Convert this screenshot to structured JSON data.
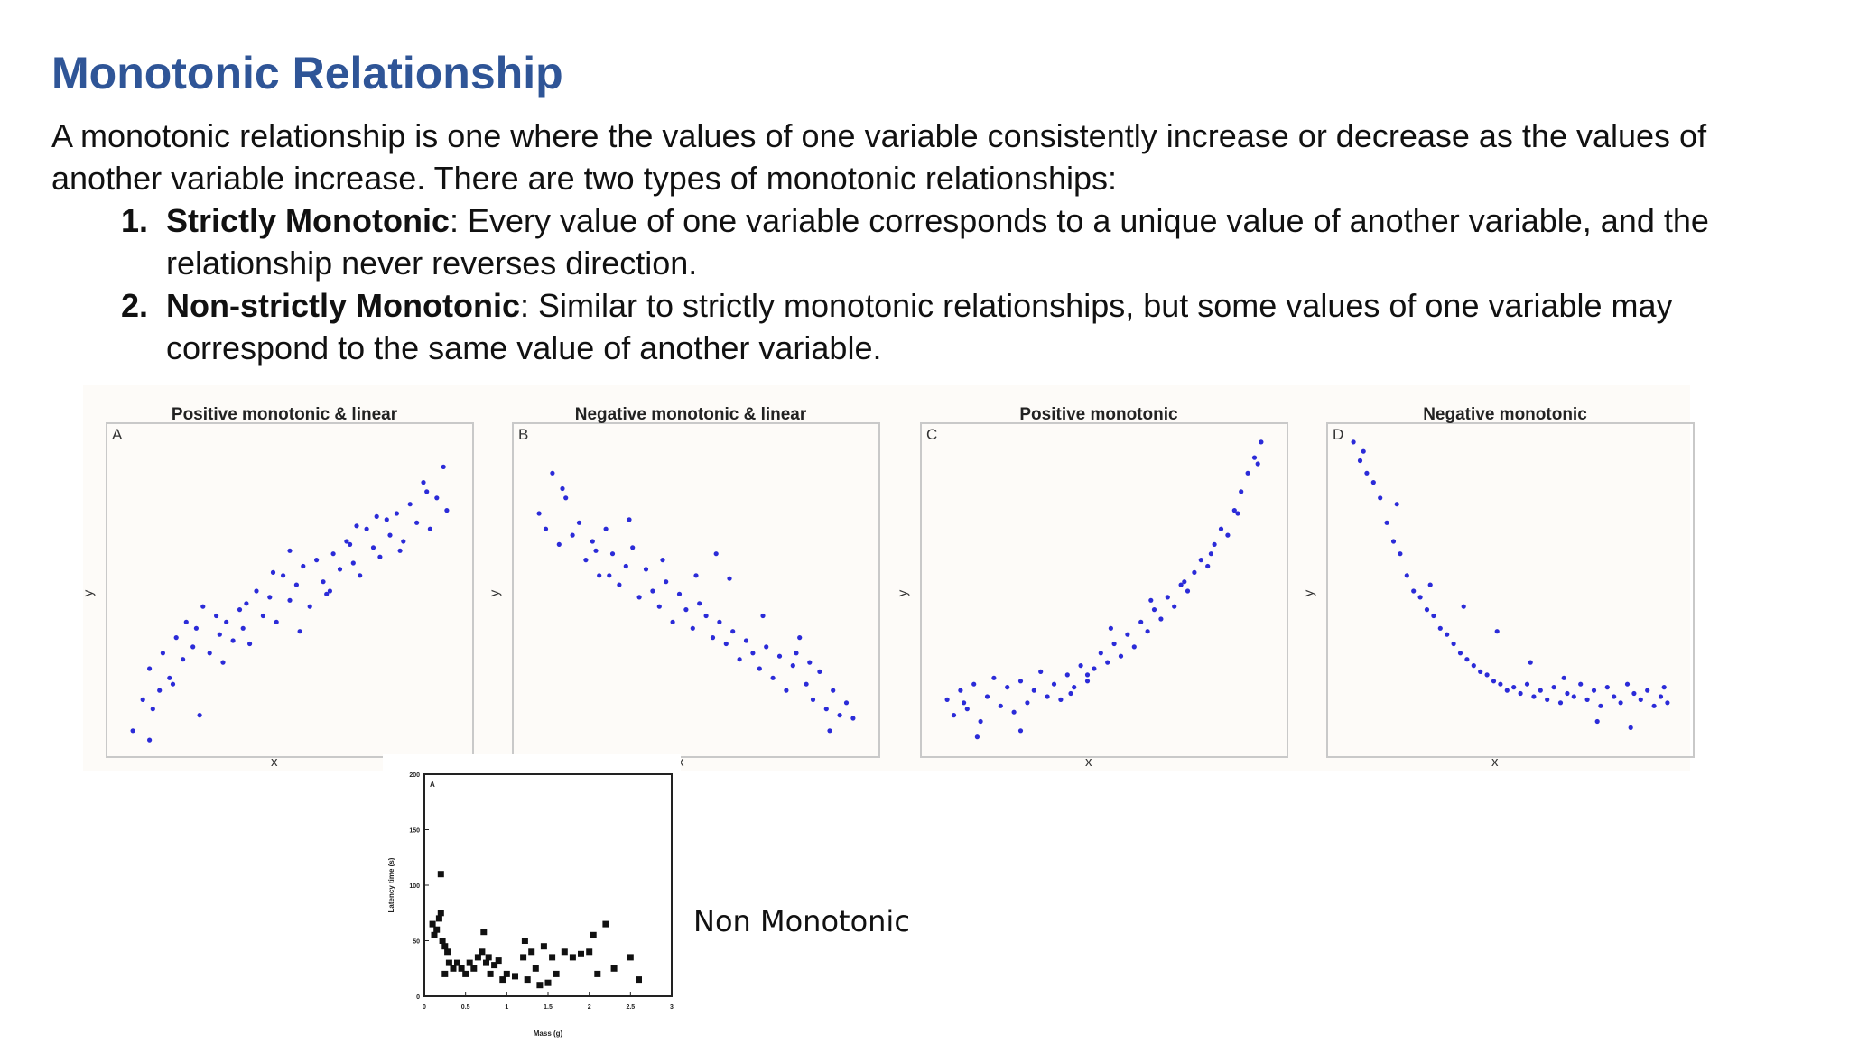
{
  "title": "Monotonic Relationship",
  "intro": "A monotonic relationship is one where the values of one variable consistently increase or decrease as the values of another variable increase. There are two types of monotonic relationships:",
  "types": [
    {
      "number": "1.",
      "term": "Strictly Monotonic",
      "text": ": Every value of one variable corresponds to a unique value of another variable, and the relationship never reverses direction."
    },
    {
      "number": "2.",
      "term": "Non-strictly Monotonic",
      "text": ": Similar to strictly monotonic relationships, but some values of one variable may correspond to the same value of another variable."
    }
  ],
  "panels": [
    {
      "letter": "A",
      "title": "Positive monotonic & linear",
      "xlabel": "x",
      "ylabel": "y"
    },
    {
      "letter": "B",
      "title": "Negative monotonic & linear",
      "xlabel": "x",
      "ylabel": "y"
    },
    {
      "letter": "C",
      "title": "Positive monotonic",
      "xlabel": "x",
      "ylabel": "y"
    },
    {
      "letter": "D",
      "title": "Negative monotonic",
      "xlabel": "x",
      "ylabel": "y"
    }
  ],
  "nonmono_caption": "Non Monotonic",
  "colors": {
    "title": "#2f5597",
    "point_blue": "#2b2bd8",
    "point_black": "#111111"
  },
  "chart_data": [
    {
      "type": "scatter",
      "title": "Positive monotonic & linear",
      "letter": "A",
      "xlabel": "x",
      "ylabel": "y",
      "xlim": [
        0,
        1
      ],
      "ylim": [
        0,
        1
      ],
      "grid": false,
      "x": [
        0.03,
        0.06,
        0.08,
        0.09,
        0.11,
        0.12,
        0.14,
        0.16,
        0.18,
        0.19,
        0.21,
        0.22,
        0.24,
        0.26,
        0.28,
        0.29,
        0.31,
        0.33,
        0.35,
        0.36,
        0.38,
        0.4,
        0.42,
        0.44,
        0.46,
        0.48,
        0.5,
        0.52,
        0.54,
        0.56,
        0.58,
        0.6,
        0.62,
        0.63,
        0.65,
        0.67,
        0.69,
        0.71,
        0.73,
        0.75,
        0.77,
        0.79,
        0.8,
        0.82,
        0.84,
        0.86,
        0.88,
        0.9,
        0.92,
        0.94,
        0.96,
        0.08,
        0.15,
        0.23,
        0.3,
        0.37,
        0.45,
        0.53,
        0.61,
        0.68,
        0.76,
        0.83,
        0.91,
        0.97,
        0.5,
        0.7
      ],
      "y": [
        0.05,
        0.15,
        0.25,
        0.12,
        0.18,
        0.3,
        0.22,
        0.35,
        0.28,
        0.4,
        0.32,
        0.38,
        0.45,
        0.3,
        0.42,
        0.36,
        0.4,
        0.34,
        0.44,
        0.38,
        0.33,
        0.5,
        0.42,
        0.48,
        0.4,
        0.55,
        0.47,
        0.52,
        0.58,
        0.45,
        0.6,
        0.53,
        0.5,
        0.62,
        0.57,
        0.66,
        0.59,
        0.55,
        0.7,
        0.64,
        0.61,
        0.73,
        0.68,
        0.75,
        0.66,
        0.78,
        0.72,
        0.85,
        0.7,
        0.8,
        0.9,
        0.02,
        0.2,
        0.1,
        0.27,
        0.46,
        0.56,
        0.37,
        0.49,
        0.65,
        0.74,
        0.63,
        0.82,
        0.76,
        0.63,
        0.71
      ]
    },
    {
      "type": "scatter",
      "title": "Negative monotonic & linear",
      "letter": "B",
      "xlabel": "x",
      "ylabel": "y",
      "xlim": [
        0,
        1
      ],
      "ylim": [
        0,
        1
      ],
      "grid": false,
      "x": [
        0.03,
        0.05,
        0.07,
        0.09,
        0.11,
        0.13,
        0.15,
        0.17,
        0.19,
        0.21,
        0.23,
        0.25,
        0.27,
        0.29,
        0.31,
        0.33,
        0.35,
        0.37,
        0.39,
        0.41,
        0.43,
        0.45,
        0.47,
        0.49,
        0.51,
        0.53,
        0.55,
        0.57,
        0.59,
        0.61,
        0.63,
        0.65,
        0.67,
        0.69,
        0.71,
        0.73,
        0.75,
        0.77,
        0.79,
        0.81,
        0.83,
        0.85,
        0.87,
        0.89,
        0.91,
        0.93,
        0.95,
        0.97,
        0.1,
        0.2,
        0.3,
        0.4,
        0.5,
        0.6,
        0.7,
        0.8,
        0.9,
        0.24,
        0.56,
        0.84
      ],
      "y": [
        0.75,
        0.7,
        0.88,
        0.65,
        0.8,
        0.68,
        0.72,
        0.6,
        0.66,
        0.55,
        0.7,
        0.62,
        0.52,
        0.58,
        0.64,
        0.48,
        0.57,
        0.5,
        0.45,
        0.53,
        0.4,
        0.49,
        0.44,
        0.38,
        0.46,
        0.42,
        0.35,
        0.4,
        0.33,
        0.37,
        0.28,
        0.34,
        0.3,
        0.25,
        0.32,
        0.22,
        0.29,
        0.18,
        0.26,
        0.35,
        0.2,
        0.15,
        0.24,
        0.12,
        0.18,
        0.1,
        0.14,
        0.09,
        0.83,
        0.63,
        0.73,
        0.6,
        0.55,
        0.54,
        0.42,
        0.3,
        0.05,
        0.55,
        0.62,
        0.27
      ]
    },
    {
      "type": "scatter",
      "title": "Positive monotonic",
      "letter": "C",
      "xlabel": "x",
      "ylabel": "y",
      "xlim": [
        0,
        1
      ],
      "ylim": [
        0,
        1
      ],
      "grid": false,
      "x": [
        0.03,
        0.05,
        0.07,
        0.09,
        0.11,
        0.13,
        0.15,
        0.17,
        0.19,
        0.21,
        0.23,
        0.25,
        0.27,
        0.29,
        0.31,
        0.33,
        0.35,
        0.37,
        0.39,
        0.41,
        0.43,
        0.45,
        0.47,
        0.49,
        0.51,
        0.53,
        0.55,
        0.57,
        0.59,
        0.61,
        0.63,
        0.65,
        0.67,
        0.69,
        0.71,
        0.73,
        0.75,
        0.77,
        0.79,
        0.81,
        0.83,
        0.85,
        0.87,
        0.89,
        0.91,
        0.93,
        0.95,
        0.97,
        0.12,
        0.25,
        0.4,
        0.52,
        0.64,
        0.74,
        0.82,
        0.9,
        0.96,
        0.08,
        0.45
      ],
      "y": [
        0.15,
        0.1,
        0.18,
        0.12,
        0.2,
        0.08,
        0.16,
        0.22,
        0.13,
        0.19,
        0.11,
        0.21,
        0.14,
        0.18,
        0.24,
        0.16,
        0.2,
        0.15,
        0.23,
        0.19,
        0.26,
        0.21,
        0.25,
        0.3,
        0.27,
        0.33,
        0.29,
        0.36,
        0.32,
        0.4,
        0.37,
        0.44,
        0.41,
        0.48,
        0.45,
        0.52,
        0.5,
        0.56,
        0.6,
        0.58,
        0.65,
        0.7,
        0.68,
        0.76,
        0.82,
        0.88,
        0.93,
        0.98,
        0.03,
        0.05,
        0.17,
        0.38,
        0.47,
        0.53,
        0.62,
        0.75,
        0.91,
        0.14,
        0.23
      ]
    },
    {
      "type": "scatter",
      "title": "Negative monotonic",
      "letter": "D",
      "xlabel": "x",
      "ylabel": "y",
      "xlim": [
        0,
        1
      ],
      "ylim": [
        0,
        1
      ],
      "grid": false,
      "x": [
        0.03,
        0.05,
        0.07,
        0.09,
        0.11,
        0.13,
        0.15,
        0.17,
        0.19,
        0.21,
        0.23,
        0.25,
        0.27,
        0.29,
        0.31,
        0.33,
        0.35,
        0.37,
        0.39,
        0.41,
        0.43,
        0.45,
        0.47,
        0.49,
        0.51,
        0.53,
        0.55,
        0.57,
        0.59,
        0.61,
        0.63,
        0.65,
        0.67,
        0.69,
        0.71,
        0.73,
        0.75,
        0.77,
        0.79,
        0.81,
        0.83,
        0.85,
        0.87,
        0.89,
        0.91,
        0.93,
        0.95,
        0.97,
        0.06,
        0.16,
        0.26,
        0.36,
        0.46,
        0.56,
        0.66,
        0.76,
        0.86,
        0.96
      ],
      "y": [
        0.98,
        0.92,
        0.88,
        0.85,
        0.8,
        0.72,
        0.66,
        0.62,
        0.55,
        0.5,
        0.48,
        0.44,
        0.42,
        0.38,
        0.36,
        0.33,
        0.3,
        0.28,
        0.26,
        0.24,
        0.23,
        0.21,
        0.2,
        0.18,
        0.19,
        0.17,
        0.2,
        0.16,
        0.18,
        0.15,
        0.19,
        0.14,
        0.17,
        0.16,
        0.2,
        0.15,
        0.18,
        0.13,
        0.19,
        0.16,
        0.14,
        0.2,
        0.17,
        0.15,
        0.18,
        0.13,
        0.16,
        0.14,
        0.95,
        0.78,
        0.52,
        0.45,
        0.37,
        0.27,
        0.22,
        0.08,
        0.06,
        0.19
      ]
    },
    {
      "type": "scatter",
      "letter": "A",
      "xlabel": "Mass (g)",
      "ylabel": "Latency time (s)",
      "xlim": [
        0,
        3
      ],
      "ylim": [
        0,
        200
      ],
      "grid": false,
      "xticks": [
        "0",
        "0.5",
        "1",
        "1.5",
        "2",
        "2.5",
        "3"
      ],
      "yticks": [
        "0",
        "50",
        "100",
        "150",
        "200"
      ],
      "x": [
        0.1,
        0.12,
        0.15,
        0.18,
        0.2,
        0.22,
        0.25,
        0.28,
        0.3,
        0.2,
        0.25,
        0.35,
        0.4,
        0.45,
        0.5,
        0.55,
        0.6,
        0.65,
        0.7,
        0.72,
        0.75,
        0.78,
        0.8,
        0.85,
        0.9,
        0.95,
        1.0,
        1.1,
        1.2,
        1.22,
        1.25,
        1.3,
        1.35,
        1.4,
        1.45,
        1.5,
        1.55,
        1.6,
        1.7,
        1.8,
        1.9,
        2.0,
        2.05,
        2.1,
        2.2,
        2.3,
        2.5,
        2.6
      ],
      "y": [
        65,
        55,
        60,
        70,
        75,
        50,
        45,
        40,
        30,
        110,
        20,
        25,
        30,
        25,
        20,
        30,
        25,
        35,
        40,
        58,
        30,
        35,
        20,
        28,
        32,
        15,
        20,
        18,
        35,
        50,
        15,
        40,
        25,
        10,
        45,
        12,
        35,
        20,
        40,
        35,
        38,
        40,
        55,
        20,
        65,
        25,
        35,
        15
      ]
    }
  ]
}
